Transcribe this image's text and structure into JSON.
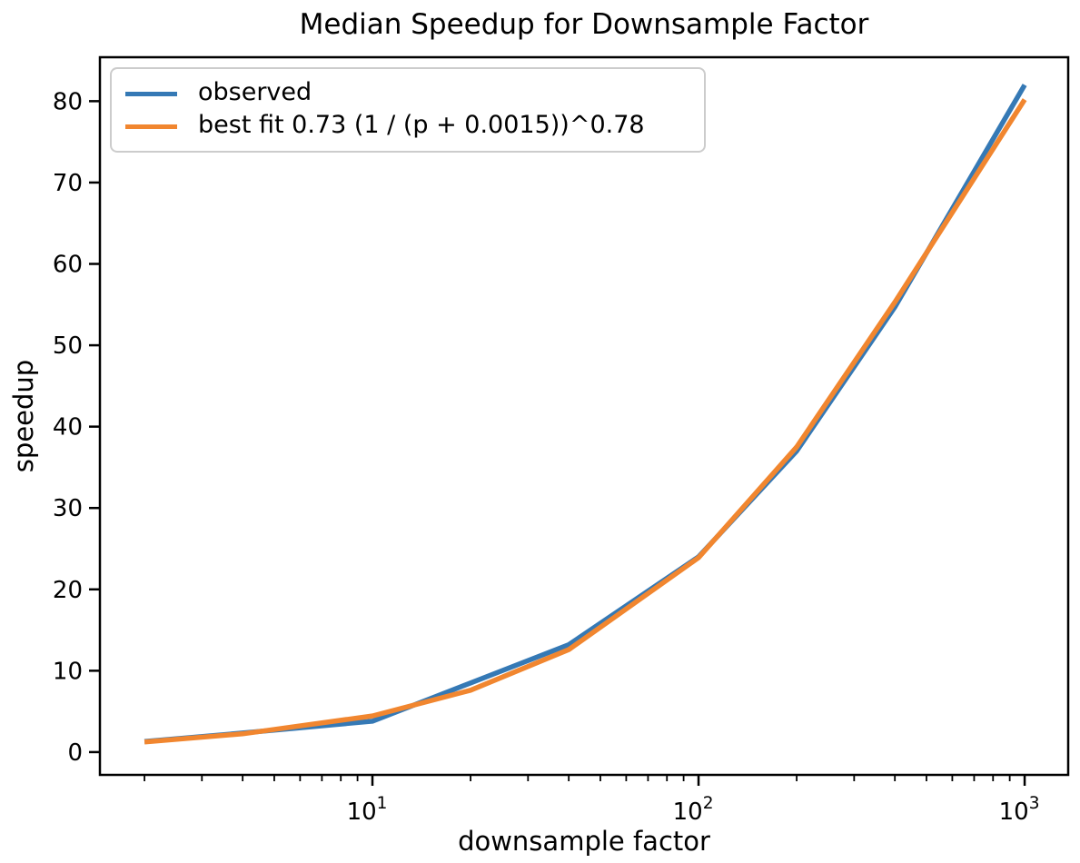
{
  "chart_data": {
    "type": "line",
    "title": "Median Speedup for Downsample Factor",
    "xlabel": "downsample factor",
    "ylabel": "speedup",
    "x_scale": "log",
    "y_scale": "linear",
    "grid": false,
    "legend_position": "upper left",
    "x": [
      2,
      4,
      10,
      20,
      40,
      100,
      200,
      400,
      1000
    ],
    "series": [
      {
        "name": "observed",
        "color": "#3579b5",
        "values": [
          1.3,
          2.35,
          3.8,
          8.5,
          13.2,
          24.0,
          37.0,
          54.7,
          82.0
        ]
      },
      {
        "name": "best fit 0.73 (1 / (p + 0.0015))^0.78",
        "color": "#f1862f",
        "values": [
          1.25,
          2.25,
          4.45,
          7.6,
          12.6,
          23.9,
          37.5,
          55.3,
          80.2
        ]
      }
    ],
    "xlim": [
      1.46,
      1360
    ],
    "ylim": [
      -2.8,
      85.4
    ],
    "y_ticks": [
      0,
      10,
      20,
      30,
      40,
      50,
      60,
      70,
      80
    ],
    "x_ticks": [
      {
        "value": 10,
        "label_base": "10",
        "label_exp": "1"
      },
      {
        "value": 100,
        "label_base": "10",
        "label_exp": "2"
      },
      {
        "value": 1000,
        "label_base": "10",
        "label_exp": "3"
      }
    ],
    "x_minor_ticks": [
      2,
      3,
      4,
      5,
      6,
      7,
      8,
      9,
      20,
      30,
      40,
      50,
      60,
      70,
      80,
      90,
      200,
      300,
      400,
      500,
      600,
      700,
      800,
      900
    ]
  }
}
